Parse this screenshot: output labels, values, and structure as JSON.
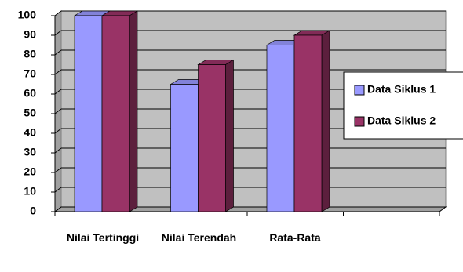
{
  "chart_data": {
    "type": "bar",
    "categories": [
      "Nilai Tertinggi",
      "Nilai Terendah",
      "Rata-Rata",
      null
    ],
    "series": [
      {
        "name": "Data Siklus 1",
        "color": "#9999ff",
        "values": [
          100,
          65,
          85,
          null
        ]
      },
      {
        "name": "Data Siklus 2",
        "color": "#993366",
        "values": [
          100,
          75,
          90,
          null
        ]
      }
    ],
    "ylim": [
      0,
      100
    ],
    "yticks": [
      0,
      10,
      20,
      30,
      40,
      50,
      60,
      70,
      80,
      90,
      100
    ],
    "grid": true,
    "legend": "right"
  }
}
